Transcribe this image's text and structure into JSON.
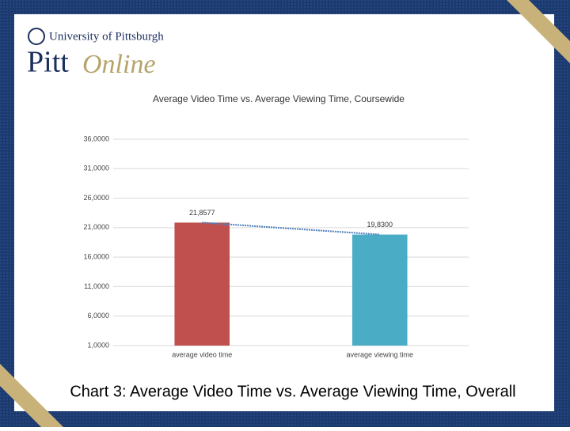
{
  "logo": {
    "university": "University of Pittsburgh",
    "pitt": "Pitt",
    "online": "Online"
  },
  "chart_data": {
    "type": "bar",
    "title": "Average Video Time vs. Average Viewing Time, Coursewide",
    "categories": [
      "average video time",
      "average viewing time"
    ],
    "values": [
      21.8577,
      19.83
    ],
    "value_labels": [
      "21,8577",
      "19,8300"
    ],
    "colors": [
      "#c0504d",
      "#4bacc6"
    ],
    "trend_line": true,
    "trend_color": "#4f81bd",
    "ylim": [
      1,
      36
    ],
    "yticks": [
      {
        "value": 1,
        "label": "1,0000"
      },
      {
        "value": 6,
        "label": "6,0000"
      },
      {
        "value": 11,
        "label": "11,0000"
      },
      {
        "value": 16,
        "label": "16,0000"
      },
      {
        "value": 21,
        "label": "21,0000"
      },
      {
        "value": 26,
        "label": "26,0000"
      },
      {
        "value": 31,
        "label": "31,0000"
      },
      {
        "value": 36,
        "label": "36,0000"
      }
    ],
    "grid": true
  },
  "caption": "Chart 3: Average Video Time vs. Average Viewing Time, Overall"
}
